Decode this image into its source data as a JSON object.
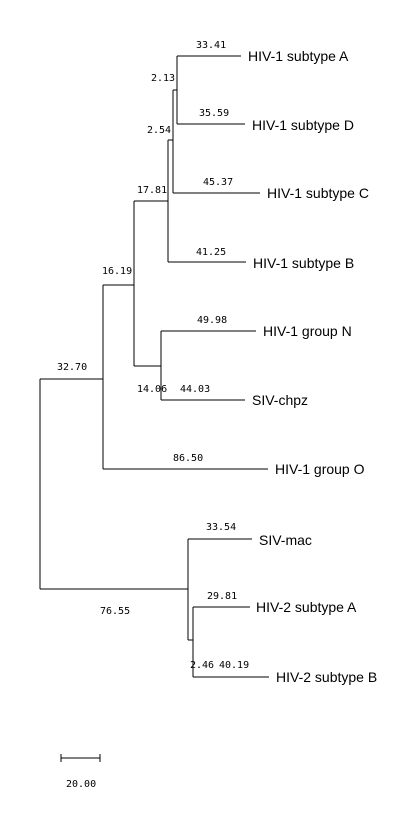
{
  "tree": {
    "taxa": [
      "HIV-1 subtype A",
      "HIV-1 subtype D",
      "HIV-1 subtype C",
      "HIV-1 subtype B",
      "HIV-1 group N",
      "SIV-chpz",
      "HIV-1 group O",
      "SIV-mac",
      "HIV-2 subtype A",
      "HIV-2 subtype B"
    ],
    "branch_lengths": {
      "hiv1_subtype_a": "33.41",
      "hiv1_subtype_d": "35.59",
      "ad_clade": "2.13",
      "hiv1_subtype_c": "45.37",
      "adc_clade": "2.54",
      "hiv1_subtype_b": "41.25",
      "adcb_clade": "17.81",
      "hiv1_group_n": "49.98",
      "siv_chpz": "44.03",
      "n_chpz_clade": "14.06",
      "hiv1_m_n_chpz_clade": "16.19",
      "hiv1_group_o": "86.50",
      "hiv1_siv_cpz_clade": "32.70",
      "hiv2_sivmac_clade": "76.55",
      "siv_mac": "33.54",
      "hiv2_subtype_a": "29.81",
      "hiv2_subtype_b": "40.19",
      "hiv2_ab_clade": "2.46"
    },
    "scale_bar_label": "20.00"
  }
}
